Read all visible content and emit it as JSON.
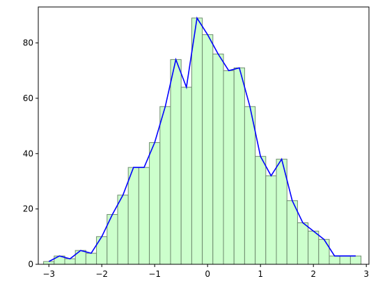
{
  "chart_data": {
    "type": "bar",
    "title": "",
    "xlabel": "",
    "ylabel": "",
    "xlim": [
      -3.2,
      3.05
    ],
    "ylim": [
      0,
      93
    ],
    "grid": false,
    "bin_edges": [
      -3.1,
      -2.9,
      -2.7,
      -2.5,
      -2.3,
      -2.1,
      -1.9,
      -1.7,
      -1.5,
      -1.3,
      -1.1,
      -0.9,
      -0.7,
      -0.5,
      -0.3,
      -0.1,
      0.1,
      0.3,
      0.5,
      0.7,
      0.9,
      1.1,
      1.3,
      1.5,
      1.7,
      1.9,
      2.1,
      2.3,
      2.5,
      2.7,
      2.9
    ],
    "counts": [
      1,
      3,
      2,
      5,
      4,
      10,
      18,
      25,
      35,
      35,
      44,
      57,
      74,
      64,
      89,
      83,
      76,
      70,
      71,
      57,
      39,
      32,
      38,
      23,
      15,
      12,
      9,
      3,
      3,
      3
    ],
    "xticks": [
      -3,
      -2,
      -1,
      0,
      1,
      2,
      3
    ],
    "yticks": [
      0,
      20,
      40,
      60,
      80
    ],
    "colors": {
      "fill": "#ccffcc",
      "edge": "#6e8a6e",
      "line": "#0000ff"
    }
  }
}
